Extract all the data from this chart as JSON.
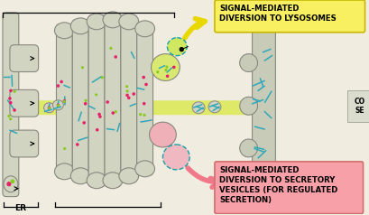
{
  "bg": "#f0ece0",
  "organelle_fill": "#d0d4c0",
  "organelle_edge": "#888880",
  "pm_fill": "#c8cbb8",
  "pm_edge": "#888880",
  "yband": "#d8e840",
  "pink": "#e8206a",
  "green": "#88cc20",
  "cyan": "#30a8b8",
  "vesicle_edge": "#18a0a8",
  "arrow_yellow": "#e8d800",
  "arrow_pink": "#f07888",
  "lyso_box_fill": "#f8f060",
  "lyso_box_edge": "#c8b800",
  "sec_box_fill": "#f8a0a8",
  "sec_box_edge": "#d07070",
  "lyso_text": "SIGNAL-MEDIATED\nDIVERSION TO LYSOSOMES",
  "sec_text": "SIGNAL-MEDIATED\nDIVERSION TO SECRETORY\nVESICLES (FOR REGULATED\nSECRETION)",
  "er_label": "ER",
  "cont_text": "CO\nSE",
  "fs_annot": 6.2,
  "fs_label": 6.5
}
